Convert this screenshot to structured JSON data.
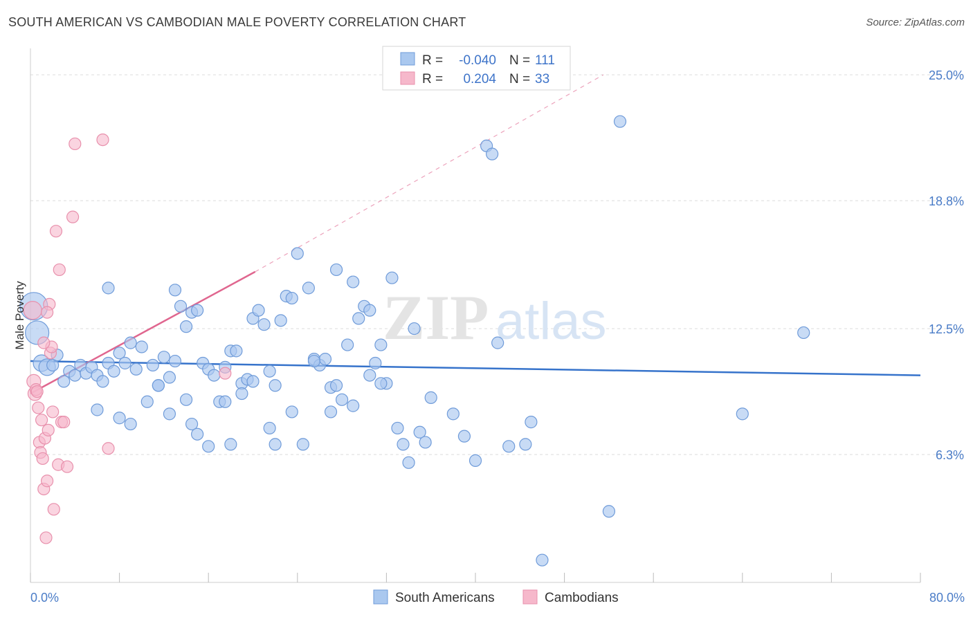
{
  "title": "SOUTH AMERICAN VS CAMBODIAN MALE POVERTY CORRELATION CHART",
  "source": "Source: ZipAtlas.com",
  "watermark": {
    "zip": "ZIP",
    "atlas": "atlas"
  },
  "colors": {
    "blue_fill": "#aac8ef",
    "blue_stroke": "#6f9bd9",
    "blue_line": "#3673cb",
    "pink_fill": "#f6b8cb",
    "pink_stroke": "#e890ac",
    "pink_line": "#e0668f",
    "tick_text": "#4a7cc7",
    "grid": "#dcdcdc"
  },
  "legend": {
    "rows": [
      {
        "r_label": "R =",
        "r_value": "-0.040",
        "n_label": "N =",
        "n_value": "111"
      },
      {
        "r_label": "R =",
        "r_value": "0.204",
        "n_label": "N =",
        "n_value": "33"
      }
    ]
  },
  "chart_data": {
    "type": "scatter",
    "title": "SOUTH AMERICAN VS CAMBODIAN MALE POVERTY CORRELATION CHART",
    "xlabel": "",
    "ylabel": "Male Poverty",
    "xlim": [
      0,
      80
    ],
    "ylim": [
      0,
      26.3
    ],
    "x_tick_labels": [
      "0.0%",
      "80.0%"
    ],
    "y_ticks": [
      6.3,
      12.5,
      18.8,
      25.0
    ],
    "y_tick_labels": [
      "6.3%",
      "12.5%",
      "18.8%",
      "25.0%"
    ],
    "grid": "horizontal dashed",
    "legend_position": "top-center",
    "series": [
      {
        "name": "South Americans",
        "color": "#aac8ef",
        "trend": {
          "x": [
            0,
            80
          ],
          "y": [
            10.9,
            10.2
          ],
          "style": "solid"
        },
        "points": [
          [
            0.3,
            13.6
          ],
          [
            0.6,
            12.3
          ],
          [
            1.0,
            10.8
          ],
          [
            1.5,
            10.6
          ],
          [
            2.0,
            10.7
          ],
          [
            2.4,
            11.2
          ],
          [
            3.0,
            9.9
          ],
          [
            3.5,
            10.4
          ],
          [
            4.0,
            10.2
          ],
          [
            4.5,
            10.7
          ],
          [
            5.0,
            10.3
          ],
          [
            5.5,
            10.6
          ],
          [
            6.0,
            10.2
          ],
          [
            6.5,
            9.9
          ],
          [
            7.0,
            10.8
          ],
          [
            7.5,
            10.4
          ],
          [
            8.0,
            11.3
          ],
          [
            8.5,
            10.8
          ],
          [
            9.0,
            11.8
          ],
          [
            9.5,
            10.5
          ],
          [
            10.0,
            11.6
          ],
          [
            10.5,
            8.9
          ],
          [
            11.0,
            10.7
          ],
          [
            11.5,
            9.7
          ],
          [
            12.0,
            11.1
          ],
          [
            12.5,
            10.1
          ],
          [
            13.0,
            14.4
          ],
          [
            13.5,
            13.6
          ],
          [
            14.0,
            12.6
          ],
          [
            14.5,
            13.3
          ],
          [
            15.0,
            13.4
          ],
          [
            15.5,
            10.8
          ],
          [
            16.0,
            10.5
          ],
          [
            16.5,
            10.2
          ],
          [
            17.0,
            8.9
          ],
          [
            17.5,
            10.6
          ],
          [
            18.0,
            11.4
          ],
          [
            18.5,
            11.4
          ],
          [
            19.0,
            9.8
          ],
          [
            19.5,
            10.0
          ],
          [
            20.0,
            13.0
          ],
          [
            20.5,
            13.4
          ],
          [
            21.0,
            12.7
          ],
          [
            21.5,
            10.4
          ],
          [
            22.0,
            9.7
          ],
          [
            22.5,
            12.9
          ],
          [
            23.0,
            14.1
          ],
          [
            23.5,
            14.0
          ],
          [
            24.0,
            16.2
          ],
          [
            25.0,
            14.5
          ],
          [
            25.5,
            11.0
          ],
          [
            26.0,
            10.7
          ],
          [
            26.5,
            11.0
          ],
          [
            27.0,
            9.6
          ],
          [
            27.5,
            15.4
          ],
          [
            28.0,
            9.0
          ],
          [
            28.5,
            11.7
          ],
          [
            29.0,
            14.8
          ],
          [
            29.5,
            13.0
          ],
          [
            30.0,
            13.6
          ],
          [
            30.5,
            13.4
          ],
          [
            31.0,
            10.8
          ],
          [
            31.5,
            11.7
          ],
          [
            32.0,
            9.8
          ],
          [
            32.5,
            15.0
          ],
          [
            33.0,
            7.6
          ],
          [
            33.5,
            6.8
          ],
          [
            34.0,
            5.9
          ],
          [
            34.5,
            12.5
          ],
          [
            35.0,
            7.4
          ],
          [
            35.5,
            6.9
          ],
          [
            36.0,
            9.1
          ],
          [
            38.0,
            8.3
          ],
          [
            39.0,
            7.2
          ],
          [
            40.0,
            6.0
          ],
          [
            41.0,
            21.5
          ],
          [
            41.5,
            21.1
          ],
          [
            42.0,
            11.8
          ],
          [
            43.0,
            6.7
          ],
          [
            44.5,
            6.8
          ],
          [
            45.0,
            7.9
          ],
          [
            46.0,
            1.1
          ],
          [
            52.0,
            3.5
          ],
          [
            53.0,
            22.7
          ],
          [
            64.0,
            8.3
          ],
          [
            69.5,
            12.3
          ],
          [
            8.0,
            8.1
          ],
          [
            12.5,
            8.3
          ],
          [
            14.5,
            7.8
          ],
          [
            19.0,
            9.3
          ],
          [
            21.5,
            7.6
          ],
          [
            23.5,
            8.4
          ],
          [
            27.0,
            8.4
          ],
          [
            29.0,
            8.7
          ],
          [
            6.0,
            8.5
          ],
          [
            9.0,
            7.8
          ],
          [
            14.0,
            9.0
          ],
          [
            16.0,
            6.7
          ],
          [
            17.5,
            8.9
          ],
          [
            22.0,
            6.8
          ],
          [
            24.5,
            6.8
          ],
          [
            25.5,
            10.9
          ],
          [
            11.5,
            9.7
          ],
          [
            15.0,
            7.3
          ],
          [
            18.0,
            6.8
          ],
          [
            27.5,
            9.7
          ],
          [
            30.5,
            10.2
          ],
          [
            7.0,
            14.5
          ],
          [
            13.0,
            10.9
          ],
          [
            20.0,
            9.9
          ],
          [
            31.5,
            9.8
          ]
        ]
      },
      {
        "name": "Cambodians",
        "color": "#f6b8cb",
        "trend": {
          "x": [
            0,
            20.2
          ],
          "y": [
            9.3,
            15.3
          ],
          "style": "solid",
          "extended": {
            "x": [
              20.2,
              51.5
            ],
            "y": [
              15.3,
              25.0
            ],
            "style": "dashed"
          }
        },
        "points": [
          [
            0.2,
            13.4
          ],
          [
            0.3,
            9.9
          ],
          [
            0.4,
            9.3
          ],
          [
            0.5,
            9.5
          ],
          [
            0.6,
            9.4
          ],
          [
            0.7,
            8.6
          ],
          [
            0.8,
            6.9
          ],
          [
            0.9,
            6.4
          ],
          [
            1.0,
            8.0
          ],
          [
            1.1,
            6.1
          ],
          [
            1.2,
            4.6
          ],
          [
            1.3,
            7.1
          ],
          [
            1.4,
            2.2
          ],
          [
            1.5,
            5.0
          ],
          [
            1.6,
            7.5
          ],
          [
            1.7,
            13.7
          ],
          [
            1.8,
            11.3
          ],
          [
            1.9,
            11.6
          ],
          [
            2.0,
            8.4
          ],
          [
            2.1,
            3.6
          ],
          [
            2.3,
            17.3
          ],
          [
            2.5,
            5.8
          ],
          [
            2.6,
            15.4
          ],
          [
            2.8,
            7.9
          ],
          [
            3.0,
            7.9
          ],
          [
            3.3,
            5.7
          ],
          [
            3.8,
            18.0
          ],
          [
            4.0,
            21.6
          ],
          [
            6.5,
            21.8
          ],
          [
            7.0,
            6.6
          ],
          [
            17.5,
            10.3
          ],
          [
            1.5,
            13.3
          ],
          [
            1.2,
            11.8
          ]
        ]
      }
    ]
  }
}
